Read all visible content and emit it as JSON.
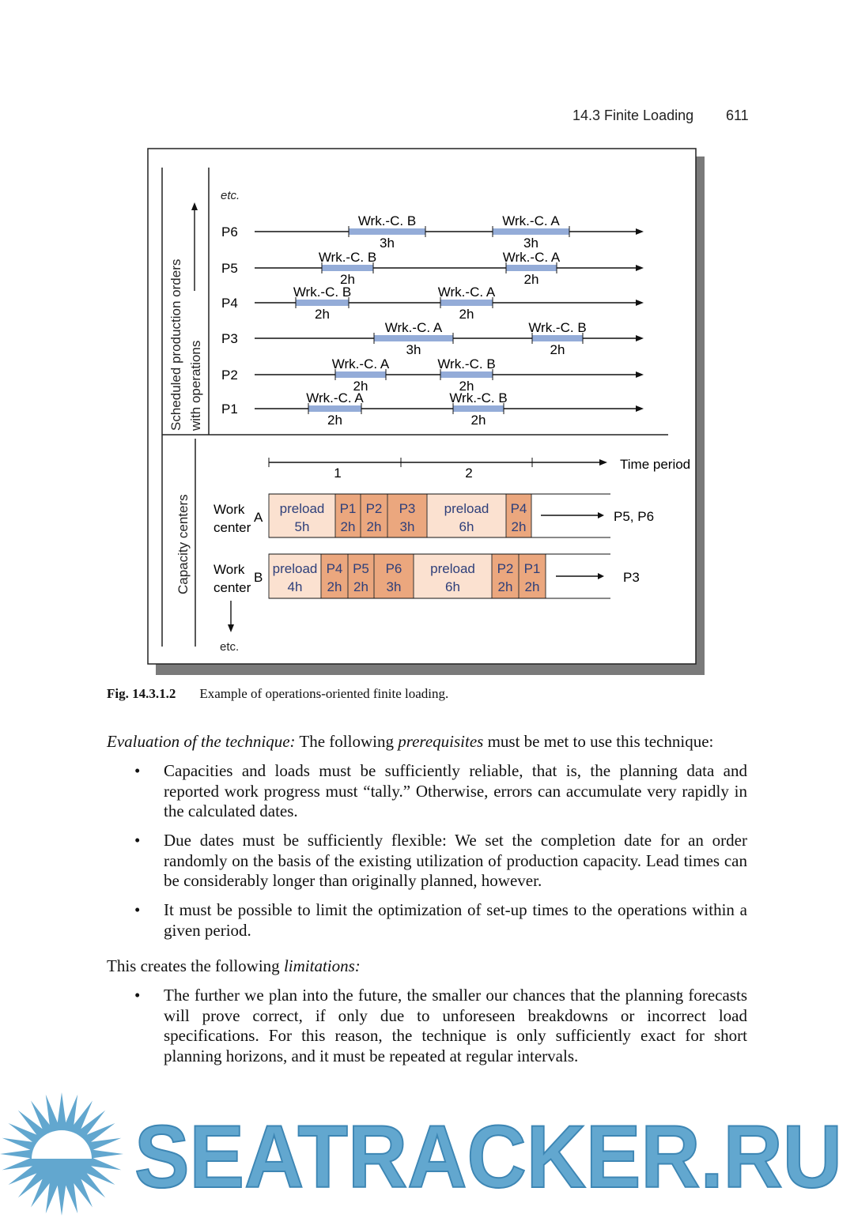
{
  "header": {
    "section": "14.3  Finite Loading",
    "page": "611"
  },
  "figure": {
    "axis_top": "Scheduled production orders",
    "axis_top2": "with operations",
    "axis_bottom": "Capacity centers",
    "etc_top": "etc.",
    "etc_bottom": "etc.",
    "orders": [
      {
        "label": "P1",
        "ops": [
          {
            "wc": "Wrk.-C. A",
            "dur": "2h"
          },
          {
            "wc": "Wrk.-C. B",
            "dur": "2h"
          }
        ]
      },
      {
        "label": "P2",
        "ops": [
          {
            "wc": "Wrk.-C. A",
            "dur": "2h"
          },
          {
            "wc": "Wrk.-C. B",
            "dur": "2h"
          }
        ]
      },
      {
        "label": "P3",
        "ops": [
          {
            "wc": "Wrk.-C. A",
            "dur": "3h"
          },
          {
            "wc": "Wrk.-C. B",
            "dur": "2h"
          }
        ]
      },
      {
        "label": "P4",
        "ops": [
          {
            "wc": "Wrk.-C. B",
            "dur": "2h"
          },
          {
            "wc": "Wrk.-C. A",
            "dur": "2h"
          }
        ]
      },
      {
        "label": "P5",
        "ops": [
          {
            "wc": "Wrk.-C. B",
            "dur": "2h"
          },
          {
            "wc": "Wrk.-C. A",
            "dur": "2h"
          }
        ]
      },
      {
        "label": "P6",
        "ops": [
          {
            "wc": "Wrk.-C. B",
            "dur": "3h"
          },
          {
            "wc": "Wrk.-C. A",
            "dur": "3h"
          }
        ]
      }
    ],
    "time_axis": {
      "label": "Time period",
      "periods": [
        "1",
        "2"
      ]
    },
    "work_centers": [
      {
        "name": "Work center",
        "id": "A",
        "cells": [
          {
            "l": "preload",
            "d": "5h",
            "type": "preload"
          },
          {
            "l": "P1",
            "d": "2h",
            "type": "order"
          },
          {
            "l": "P2",
            "d": "2h",
            "type": "order"
          },
          {
            "l": "P3",
            "d": "3h",
            "type": "order"
          },
          {
            "l": "preload",
            "d": "6h",
            "type": "preload"
          },
          {
            "l": "P4",
            "d": "2h",
            "type": "order"
          }
        ],
        "overflow": "P5, P6"
      },
      {
        "name": "Work center",
        "id": "B",
        "cells": [
          {
            "l": "preload",
            "d": "4h",
            "type": "preload"
          },
          {
            "l": "P4",
            "d": "2h",
            "type": "order"
          },
          {
            "l": "P5",
            "d": "2h",
            "type": "order"
          },
          {
            "l": "P6",
            "d": "3h",
            "type": "order"
          },
          {
            "l": "preload",
            "d": "6h",
            "type": "preload"
          },
          {
            "l": "P2",
            "d": "2h",
            "type": "order"
          },
          {
            "l": "P1",
            "d": "2h",
            "type": "order"
          }
        ],
        "overflow": "P3"
      }
    ],
    "colors": {
      "operation_bar": "#94acd8",
      "preload": "#fbe1d0",
      "order": "#eba77e",
      "cell_text": "#2e3f7a"
    },
    "caption_num": "Fig. 14.3.1.2",
    "caption_text": "Example of operations-oriented finite loading."
  },
  "body": {
    "p1_italic": "Evaluation of the technique:",
    "p1_a": " The following ",
    "p1_italic2": "prerequisites",
    "p1_b": " must be met to use this technique:",
    "bullets1": [
      "Capacities and loads must be sufficiently reliable, that is, the planning data and reported work progress must “tally.” Otherwise, errors can accumulate very rapidly in the calculated dates.",
      "Due dates must be sufficiently flexible: We set the completion date for an order randomly on the basis of the existing utilization of production capacity. Lead times can be considerably longer than originally planned, however.",
      "It must be possible to limit the optimization of set-up times to the operations within a given period."
    ],
    "p2_a": "This creates the following ",
    "p2_italic": "limitations:",
    "bullets2": [
      "The further we plan into the future, the smaller our chances that the planning forecasts will prove correct, if only due to unforeseen breakdowns or incorrect load specifications. For this reason, the technique is only sufficiently exact for short planning horizons, and it must be repeated at regular intervals."
    ],
    "bullet_char": "•"
  },
  "watermark": {
    "text": "SEATRACKER.RU",
    "color": "#62a7cf"
  }
}
